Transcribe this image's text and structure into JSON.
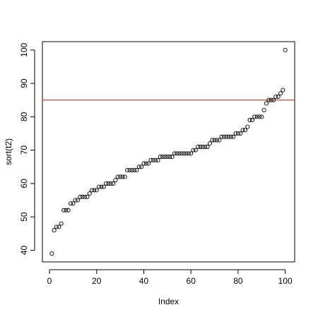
{
  "chart_data": {
    "type": "scatter",
    "title": "",
    "xlabel": "Index",
    "ylabel": "sort(t2)",
    "xlim": [
      -3,
      104
    ],
    "ylim": [
      36.5,
      102.5
    ],
    "xticks": [
      0,
      20,
      40,
      60,
      80,
      100
    ],
    "yticks": [
      40,
      50,
      60,
      70,
      80,
      90,
      100
    ],
    "grid": false,
    "legend": "none",
    "point_color": "#000000",
    "reference_line": {
      "orientation": "horizontal",
      "y": 85,
      "color": "#d0472b"
    },
    "series": [
      {
        "x": [
          1,
          2,
          3,
          4,
          5,
          6,
          7,
          8,
          9,
          10,
          11,
          12,
          13,
          14,
          15,
          16,
          17,
          18,
          19,
          20,
          21,
          22,
          23,
          24,
          25,
          26,
          27,
          28,
          29,
          30,
          31,
          32,
          33,
          34,
          35,
          36,
          37,
          38,
          39,
          40,
          41,
          42,
          43,
          44,
          45,
          46,
          47,
          48,
          49,
          50,
          51,
          52,
          53,
          54,
          55,
          56,
          57,
          58,
          59,
          60,
          61,
          62,
          63,
          64,
          65,
          66,
          67,
          68,
          69,
          70,
          71,
          72,
          73,
          74,
          75,
          76,
          77,
          78,
          79,
          80,
          81,
          82,
          83,
          84,
          85,
          86,
          87,
          88,
          89,
          90,
          91,
          92,
          93,
          94,
          95,
          96,
          97,
          98,
          99,
          100
        ],
        "y": [
          39,
          46,
          47,
          47,
          48,
          52,
          52,
          52,
          54,
          54,
          55,
          55,
          56,
          56,
          56,
          56,
          57,
          58,
          58,
          58,
          59,
          59,
          59,
          60,
          60,
          60,
          60,
          61,
          62,
          62,
          62,
          62,
          64,
          64,
          64,
          64,
          64,
          65,
          65,
          66,
          66,
          66,
          67,
          67,
          67,
          67,
          68,
          68,
          68,
          68,
          68,
          68,
          69,
          69,
          69,
          69,
          69,
          69,
          69,
          69,
          70,
          70,
          71,
          71,
          71,
          71,
          71,
          72,
          73,
          73,
          73,
          73,
          74,
          74,
          74,
          74,
          74,
          74,
          75,
          75,
          75,
          76,
          76,
          77,
          79,
          79,
          80,
          80,
          80,
          80,
          82,
          84,
          85,
          85,
          85,
          86,
          86,
          87,
          88,
          100
        ]
      }
    ]
  }
}
